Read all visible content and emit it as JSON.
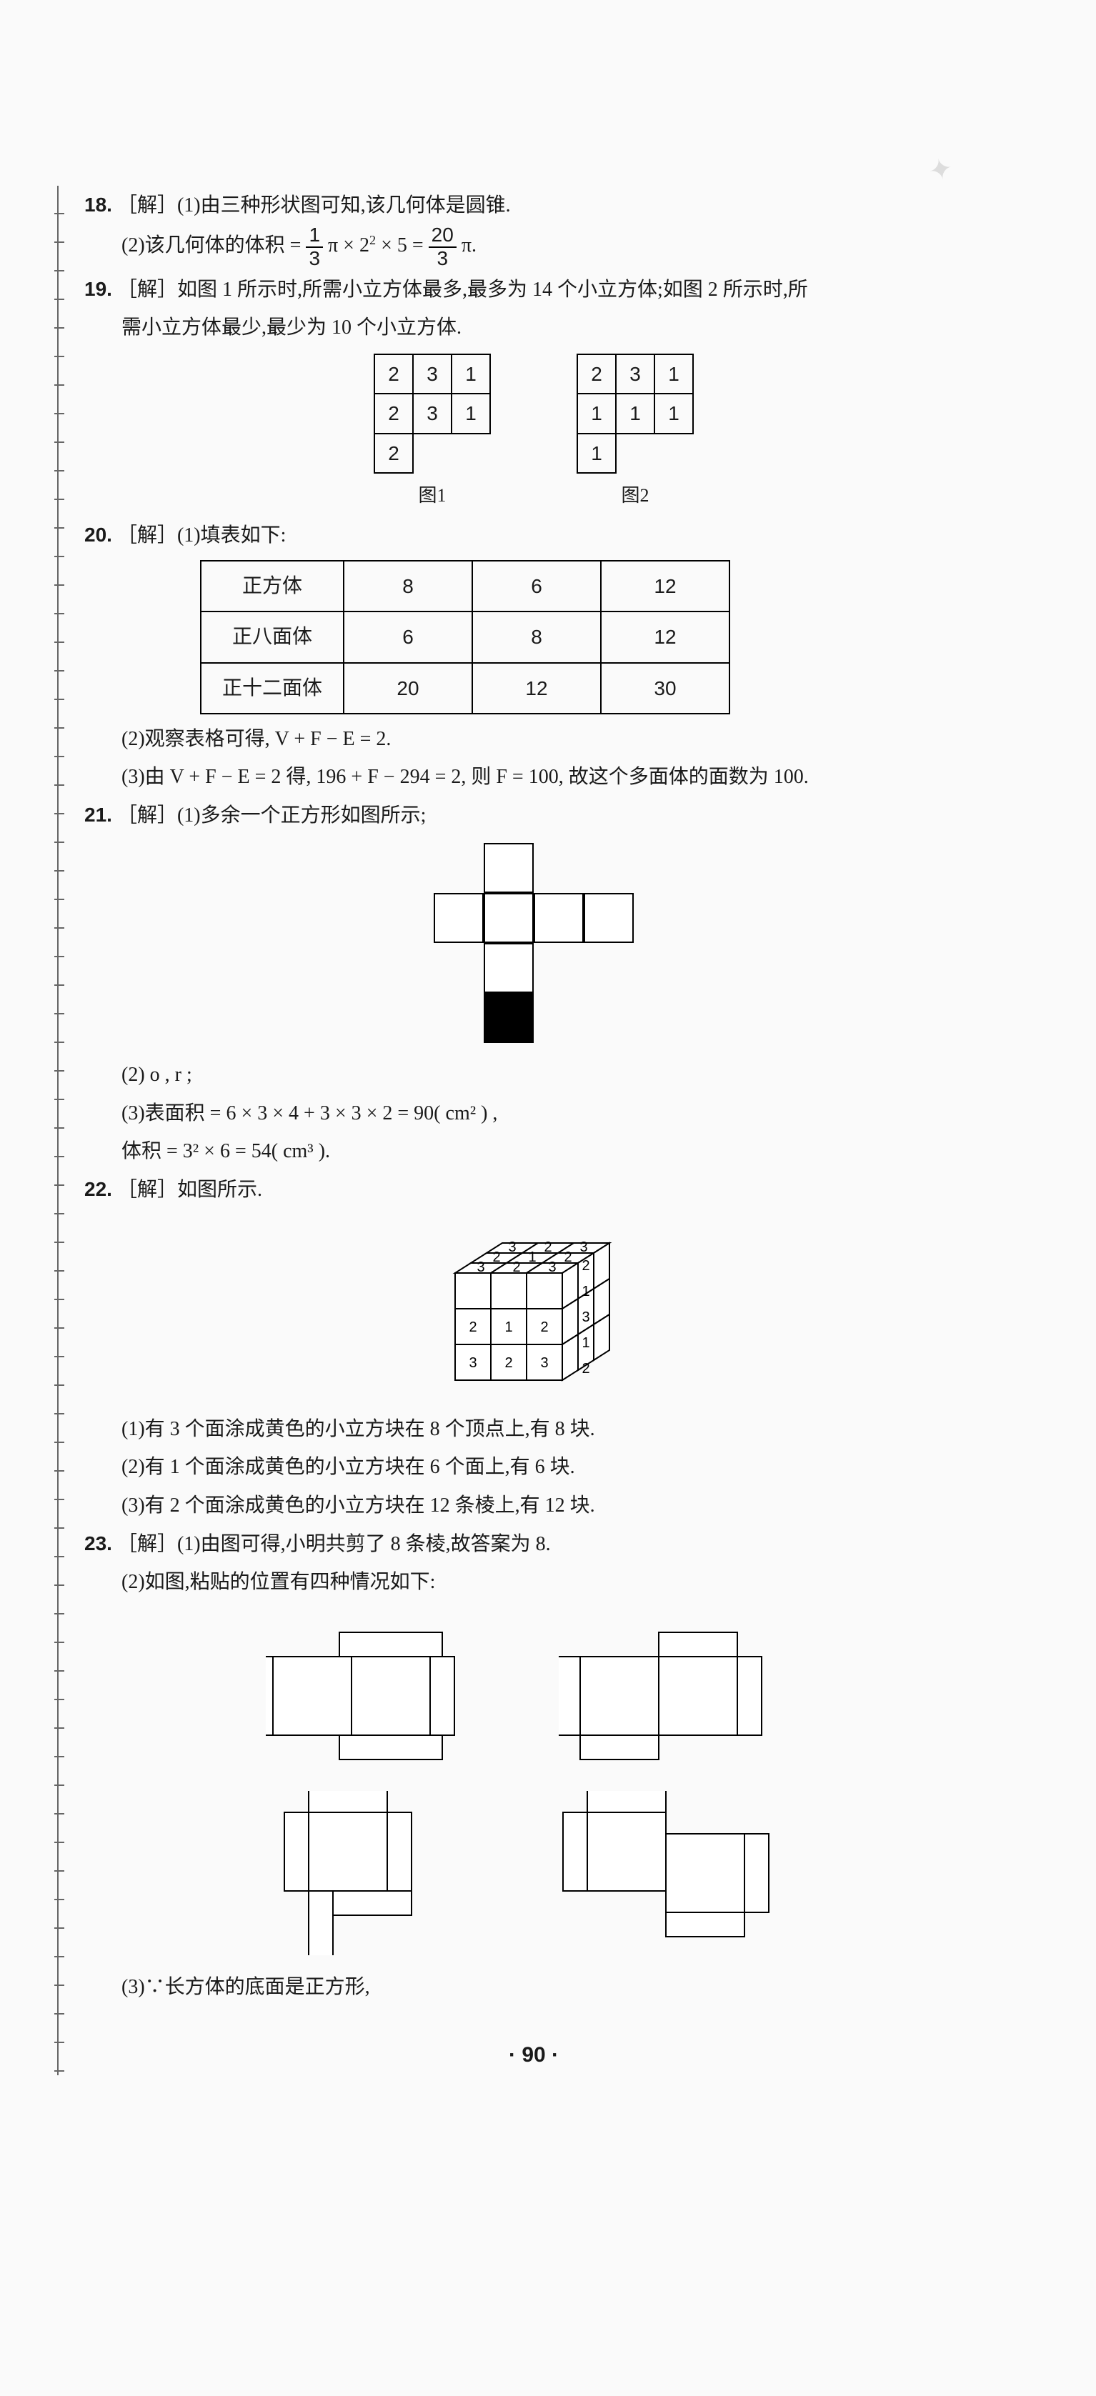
{
  "colors": {
    "text": "#1a1a1a",
    "border": "#000000",
    "bg": "#fafafa",
    "fill": "#000000",
    "light": "#e8e8e8"
  },
  "q18": {
    "num": "18.",
    "l1": "［解］(1)由三种形状图可知,该几何体是圆锥.",
    "l2a": "(2)该几何体的体积 = ",
    "frac1_n": "1",
    "frac1_d": "3",
    "l2b": " π × 2",
    "sup1": "2",
    "l2c": " × 5 = ",
    "frac2_n": "20",
    "frac2_d": "3",
    "l2d": " π."
  },
  "q19": {
    "num": "19.",
    "l1": "［解］如图 1 所示时,所需小立方体最多,最多为 14 个小立方体;如图 2 所示时,所",
    "l2": "需小立方体最少,最少为 10 个小立方体.",
    "grid1": [
      [
        "2",
        "3",
        "1"
      ],
      [
        "2",
        "3",
        "1"
      ],
      [
        "2",
        "",
        ""
      ]
    ],
    "grid2": [
      [
        "2",
        "3",
        "1"
      ],
      [
        "1",
        "1",
        "1"
      ],
      [
        "1",
        "",
        ""
      ]
    ],
    "cap1": "图1",
    "cap2": "图2"
  },
  "q20": {
    "num": "20.",
    "l1": "［解］(1)填表如下:",
    "rows": [
      [
        "正方体",
        "8",
        "6",
        "12"
      ],
      [
        "正八面体",
        "6",
        "8",
        "12"
      ],
      [
        "正十二面体",
        "20",
        "12",
        "30"
      ]
    ],
    "l2": "(2)观察表格可得, V + F − E = 2.",
    "l3": "(3)由 V + F − E = 2 得, 196 + F − 294 = 2, 则 F = 100, 故这个多面体的面数为 100."
  },
  "q21": {
    "num": "21.",
    "l1": "［解］(1)多余一个正方形如图所示;",
    "net": [
      [
        0,
        1,
        0,
        0
      ],
      [
        1,
        1,
        1,
        1
      ],
      [
        0,
        1,
        0,
        0
      ],
      [
        0,
        2,
        0,
        0
      ]
    ],
    "l2": "(2) o , r ;",
    "l3": "(3)表面积 = 6 × 3 × 4 + 3 × 3 × 2 = 90( cm² ) ,",
    "l4": "体积 = 3² × 6 = 54( cm³ )."
  },
  "q22": {
    "num": "22.",
    "l1": "［解］如图所示.",
    "cube_front": [
      [
        "2",
        "1",
        "2"
      ],
      [
        "3",
        "2",
        "3"
      ]
    ],
    "cube_top": [
      [
        "3",
        "2",
        "3"
      ],
      [
        "2",
        "1",
        "2"
      ],
      [
        "3",
        "2",
        "3"
      ]
    ],
    "cube_right": [
      [
        "2",
        "1",
        "3",
        "1",
        "2"
      ]
    ],
    "l2": "(1)有 3 个面涂成黄色的小立方块在 8 个顶点上,有 8 块.",
    "l3": "(2)有 1 个面涂成黄色的小立方块在 6 个面上,有 6 块.",
    "l4": "(3)有 2 个面涂成黄色的小立方块在 12 条棱上,有 12 块."
  },
  "q23": {
    "num": "23.",
    "l1": "［解］(1)由图可得,小明共剪了 8 条棱,故答案为 8.",
    "l2": "(2)如图,粘贴的位置有四种情况如下:",
    "l3": "(3)∵长方体的底面是正方形,"
  },
  "page_number": "90"
}
